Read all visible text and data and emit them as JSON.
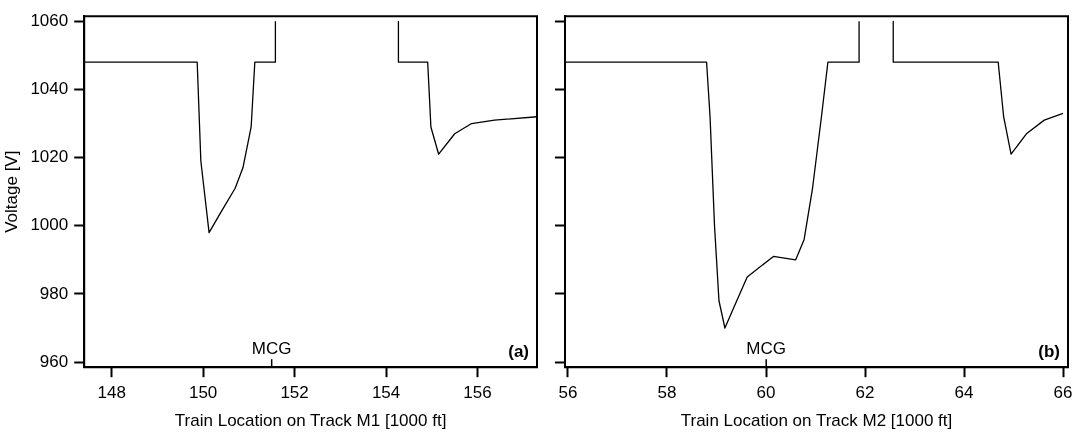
{
  "chart_data": [
    {
      "type": "line",
      "xlabel": "Train Location on Track M1 [1000 ft]",
      "ylabel": "Voltage [V]",
      "xlim": [
        147.4,
        157.3
      ],
      "ylim": [
        958.5,
        1061.5
      ],
      "xticks": [
        148,
        150,
        152,
        154,
        156
      ],
      "yticks": [
        960,
        980,
        1000,
        1020,
        1040,
        1060
      ],
      "grid": false,
      "legend": false,
      "marker": "none",
      "line_style": "solid",
      "series": [
        {
          "color": "#000000",
          "x": [
            147.4,
            149.87,
            149.95,
            150.13,
            150.39,
            150.7,
            150.87,
            151.05,
            151.13,
            151.58,
            151.58,
            151.6,
            154.27,
            154.27,
            154.91,
            154.98,
            155.15,
            155.5,
            155.87,
            156.37,
            157.3
          ],
          "values": [
            1048,
            1048,
            1019,
            998,
            1004,
            1011,
            1017,
            1029,
            1048,
            1048,
            1060,
            null,
            1060,
            1048,
            1048,
            1029,
            1021,
            1027,
            1030,
            1031,
            1032
          ]
        }
      ],
      "annotations": [
        "MCG",
        "(a)"
      ]
    },
    {
      "type": "line",
      "xlabel": "Train Location on Track M2 [1000 ft]",
      "xlim": [
        55.94,
        66.1
      ],
      "ylim": [
        958.5,
        1061.5
      ],
      "xticks": [
        56,
        58,
        60,
        62,
        64,
        66
      ],
      "yticks": [
        960,
        980,
        1000,
        1020,
        1040,
        1060
      ],
      "tick_labels": "x",
      "grid": false,
      "legend": false,
      "marker": "none",
      "line_style": "solid",
      "series": [
        {
          "color": "#000000",
          "x": [
            55.94,
            58.8,
            58.87,
            58.96,
            59.05,
            59.17,
            59.35,
            59.62,
            60.15,
            60.6,
            60.77,
            60.94,
            61.12,
            61.25,
            61.88,
            61.88,
            61.9,
            62.57,
            62.57,
            64.69,
            64.8,
            64.95,
            65.26,
            65.62,
            66.0
          ],
          "values": [
            1048,
            1048,
            1032,
            1000,
            978,
            970,
            976,
            985,
            991,
            990,
            996,
            1011,
            1032,
            1048,
            1048,
            1060,
            null,
            1060,
            1048,
            1048,
            1032,
            1021,
            1027,
            1031,
            1033
          ]
        }
      ],
      "annotations": [
        "MCG",
        "(b)"
      ]
    }
  ]
}
